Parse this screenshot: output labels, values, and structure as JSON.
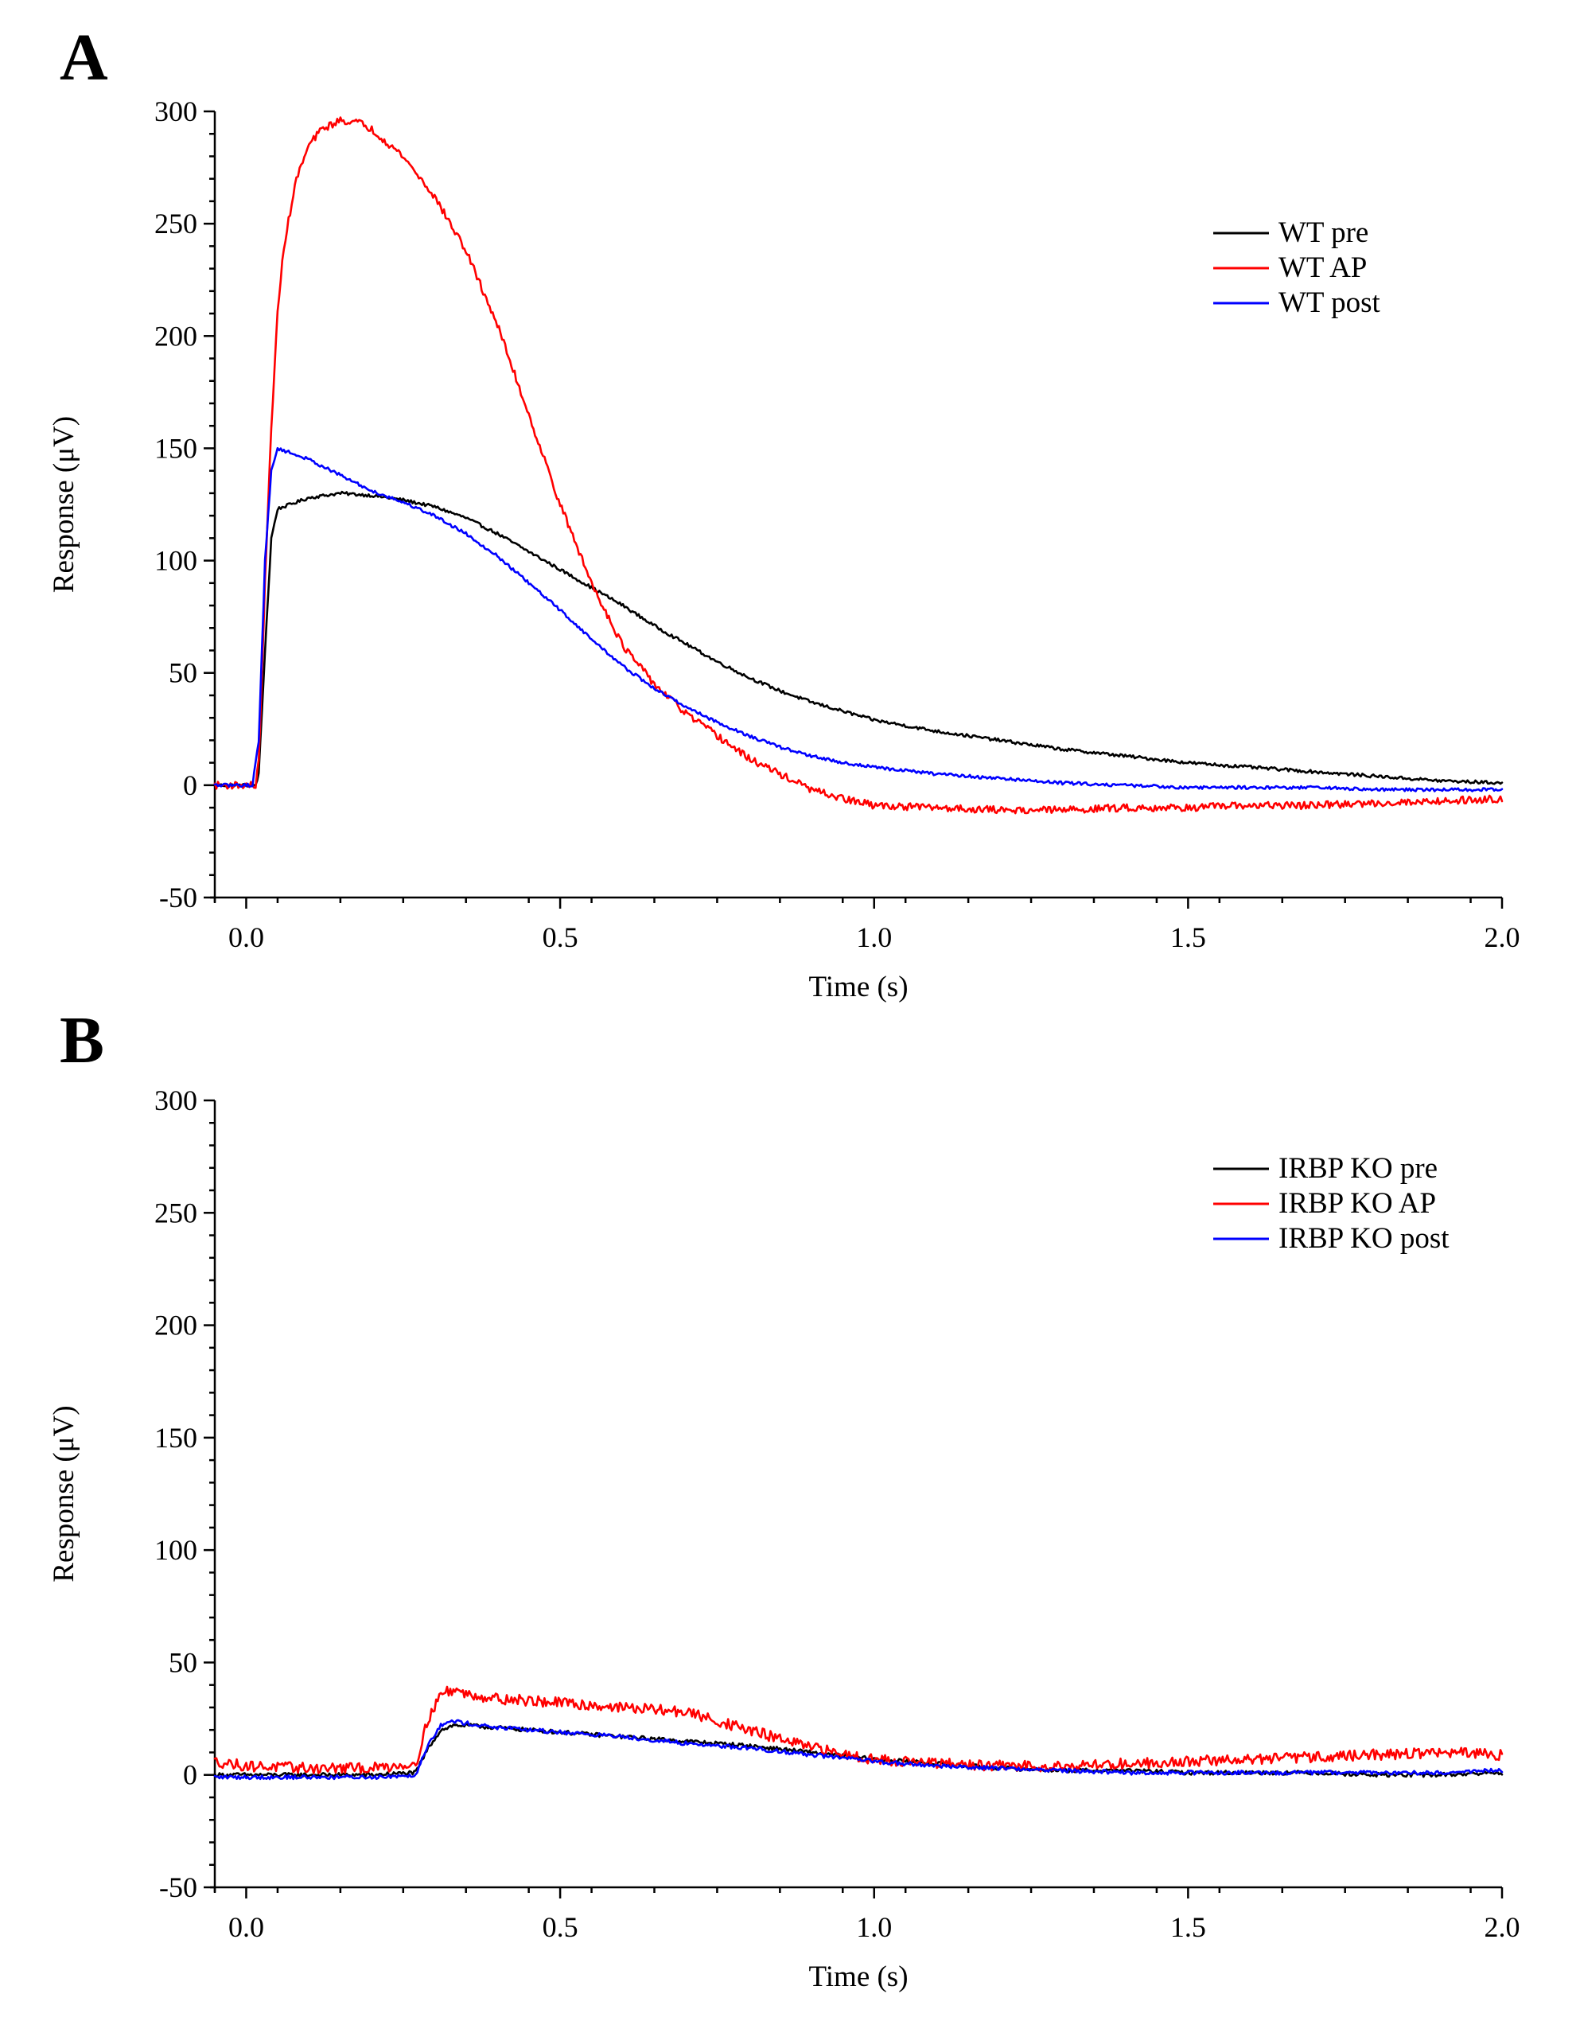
{
  "chart_data": [
    {
      "type": "line",
      "panel_label": "A",
      "xlabel": "Time (s)",
      "ylabel": "Response (μV)",
      "xlim": [
        -0.05,
        2.0
      ],
      "ylim": [
        -50,
        300
      ],
      "x_ticks": [
        0.0,
        0.5,
        1.0,
        1.5,
        2.0
      ],
      "x_tick_labels": [
        "0.0",
        "0.5",
        "1.0",
        "1.5",
        "2.0"
      ],
      "y_ticks": [
        -50,
        0,
        50,
        100,
        150,
        200,
        250,
        300
      ],
      "y_tick_labels": [
        "-50",
        "0",
        "50",
        "100",
        "150",
        "200",
        "250",
        "300"
      ],
      "legend_position": "top-right",
      "series": [
        {
          "name": "WT pre",
          "color": "#000000",
          "x": [
            -0.05,
            0.0,
            0.015,
            0.02,
            0.03,
            0.04,
            0.05,
            0.1,
            0.15,
            0.2,
            0.25,
            0.3,
            0.35,
            0.4,
            0.45,
            0.5,
            0.55,
            0.6,
            0.65,
            0.7,
            0.75,
            0.8,
            0.85,
            0.9,
            0.95,
            1.0,
            1.1,
            1.2,
            1.3,
            1.4,
            1.5,
            1.6,
            1.7,
            1.8,
            1.9,
            2.0
          ],
          "y": [
            0,
            0,
            0,
            5,
            60,
            110,
            123,
            128,
            130,
            129,
            127,
            124,
            119,
            112,
            104,
            96,
            88,
            80,
            71,
            63,
            55,
            48,
            42,
            37,
            33,
            29,
            24,
            20,
            16,
            13,
            10,
            8,
            6,
            4,
            2,
            1
          ]
        },
        {
          "name": "WT AP",
          "color": "#ff0000",
          "x": [
            -0.05,
            0.0,
            0.015,
            0.02,
            0.03,
            0.04,
            0.05,
            0.06,
            0.08,
            0.1,
            0.12,
            0.15,
            0.18,
            0.2,
            0.25,
            0.3,
            0.35,
            0.4,
            0.45,
            0.5,
            0.55,
            0.6,
            0.65,
            0.7,
            0.75,
            0.8,
            0.85,
            0.9,
            0.95,
            1.0,
            1.1,
            1.2,
            1.3,
            1.4,
            1.5,
            1.6,
            1.7,
            1.8,
            1.9,
            2.0
          ],
          "y": [
            0,
            0,
            0,
            10,
            90,
            160,
            210,
            240,
            270,
            285,
            292,
            296,
            295,
            292,
            280,
            262,
            238,
            205,
            165,
            125,
            90,
            62,
            45,
            32,
            22,
            12,
            5,
            -2,
            -6,
            -9,
            -10,
            -11,
            -11,
            -10,
            -10,
            -9,
            -9,
            -8,
            -7,
            -6
          ]
        },
        {
          "name": "WT post",
          "color": "#0000ff",
          "x": [
            -0.05,
            0.0,
            0.01,
            0.02,
            0.03,
            0.04,
            0.05,
            0.06,
            0.1,
            0.15,
            0.2,
            0.25,
            0.3,
            0.35,
            0.4,
            0.45,
            0.5,
            0.55,
            0.6,
            0.65,
            0.7,
            0.75,
            0.8,
            0.85,
            0.9,
            0.95,
            1.0,
            1.1,
            1.2,
            1.3,
            1.4,
            1.5,
            1.6,
            1.7,
            1.8,
            1.9,
            2.0
          ],
          "y": [
            0,
            0,
            0,
            20,
            100,
            140,
            150,
            149,
            145,
            138,
            131,
            126,
            120,
            112,
            102,
            90,
            78,
            65,
            53,
            43,
            35,
            28,
            22,
            17,
            13,
            10,
            8,
            5,
            3,
            1,
            0,
            -1,
            -1,
            -1,
            -2,
            -2,
            -2
          ]
        }
      ]
    },
    {
      "type": "line",
      "panel_label": "B",
      "xlabel": "Time (s)",
      "ylabel": "Response (μV)",
      "xlim": [
        -0.05,
        2.0
      ],
      "ylim": [
        -50,
        300
      ],
      "x_ticks": [
        0.0,
        0.5,
        1.0,
        1.5,
        2.0
      ],
      "x_tick_labels": [
        "0.0",
        "0.5",
        "1.0",
        "1.5",
        "2.0"
      ],
      "y_ticks": [
        -50,
        0,
        50,
        100,
        150,
        200,
        250,
        300
      ],
      "y_tick_labels": [
        "-50",
        "0",
        "50",
        "100",
        "150",
        "200",
        "250",
        "300"
      ],
      "legend_position": "top-right",
      "series": [
        {
          "name": "IRBP KO pre",
          "color": "#000000",
          "x": [
            -0.05,
            0.0,
            0.1,
            0.2,
            0.27,
            0.29,
            0.31,
            0.33,
            0.35,
            0.4,
            0.5,
            0.6,
            0.7,
            0.8,
            0.9,
            1.0,
            1.1,
            1.2,
            1.3,
            1.4,
            1.5,
            1.6,
            1.7,
            1.8,
            1.9,
            2.0
          ],
          "y": [
            0,
            0,
            0,
            0,
            1,
            12,
            20,
            22,
            22,
            21,
            19,
            17,
            15,
            13,
            10,
            7,
            5,
            3,
            2,
            2,
            1,
            1,
            1,
            0,
            0,
            1
          ]
        },
        {
          "name": "IRBP KO AP",
          "color": "#ff0000",
          "x": [
            -0.05,
            0.0,
            0.1,
            0.2,
            0.27,
            0.29,
            0.31,
            0.33,
            0.35,
            0.4,
            0.5,
            0.6,
            0.7,
            0.75,
            0.8,
            0.85,
            0.9,
            1.0,
            1.1,
            1.2,
            1.3,
            1.4,
            1.5,
            1.6,
            1.7,
            1.8,
            1.9,
            2.0
          ],
          "y": [
            6,
            4,
            3,
            3,
            5,
            25,
            36,
            38,
            36,
            34,
            32,
            30,
            28,
            24,
            20,
            16,
            12,
            7,
            5,
            4,
            4,
            5,
            6,
            7,
            8,
            9,
            10,
            9
          ]
        },
        {
          "name": "IRBP KO post",
          "color": "#0000ff",
          "x": [
            -0.05,
            0.0,
            0.1,
            0.2,
            0.27,
            0.29,
            0.31,
            0.33,
            0.35,
            0.4,
            0.5,
            0.6,
            0.7,
            0.8,
            0.9,
            1.0,
            1.1,
            1.2,
            1.3,
            1.4,
            1.5,
            1.6,
            1.7,
            1.8,
            1.9,
            2.0
          ],
          "y": [
            -1,
            -1,
            -1,
            -1,
            0,
            14,
            22,
            24,
            23,
            21,
            19,
            17,
            14,
            12,
            9,
            6,
            4,
            3,
            2,
            1,
            1,
            1,
            1,
            1,
            1,
            2
          ]
        }
      ]
    }
  ]
}
